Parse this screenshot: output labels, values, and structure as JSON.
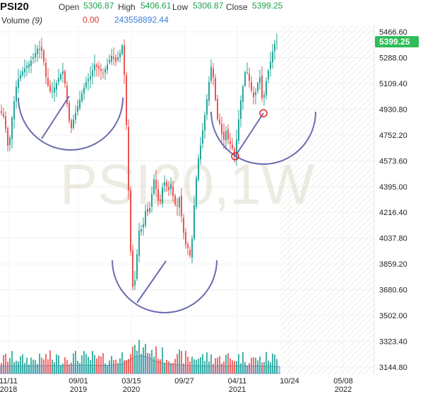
{
  "header": {
    "symbol": "PSI20",
    "open_label": "Open",
    "open_value": "5306.87",
    "high_label": "High",
    "high_value": "5406.61",
    "low_label": "Low",
    "low_value": "5306.87",
    "close_label": "Close",
    "close_value": "5399.25",
    "volume_label": "Volume",
    "volume_period": "(9)",
    "volume_value": "0.00",
    "volume_ma_value": "243558892.44",
    "price_badge": "5399.25"
  },
  "watermark": "PSI20,1W",
  "colors": {
    "up": "#26a69a",
    "down": "#ef5350",
    "badge": "#2ebd59",
    "value_green": "#1aa34a",
    "value_red": "#e03030",
    "value_blue": "#3b7fd6",
    "annotation": "#6b6bb0",
    "marker": "#e02a2a",
    "volume_area": "#aac6ea"
  },
  "chart_data": {
    "type": "candlestick",
    "title": "PSI20",
    "timeframe": "1W",
    "y_ticks": [
      5466.6,
      5288.0,
      5109.4,
      4930.8,
      4752.2,
      4573.6,
      4395.0,
      4216.4,
      4037.8,
      3859.2,
      3680.6,
      3502.0,
      3323.4,
      3144.8
    ],
    "y_tick_labels": [
      "5466.60",
      "5288.00",
      "5109.40",
      "4930.80",
      "4752.20",
      "4573.60",
      "4395.00",
      "4216.40",
      "4037.80",
      "3859.20",
      "3680.60",
      "3502.00",
      "3323.40",
      "3144.80"
    ],
    "ylim": [
      3120,
      5560
    ],
    "x_ticks": [
      {
        "label": "11/11",
        "sub": "2018"
      },
      {
        "label": "09/01",
        "sub": "2019"
      },
      {
        "label": "03/15",
        "sub": "2020"
      },
      {
        "label": "09/27",
        "sub": ""
      },
      {
        "label": "04/11",
        "sub": "2021"
      },
      {
        "label": "10/24",
        "sub": ""
      },
      {
        "label": "05/08",
        "sub": "2022"
      }
    ],
    "price_path": [
      [
        0,
        4920
      ],
      [
        6,
        4870
      ],
      [
        12,
        4640
      ],
      [
        18,
        4920
      ],
      [
        24,
        5120
      ],
      [
        30,
        5180
      ],
      [
        36,
        5220
      ],
      [
        42,
        5250
      ],
      [
        48,
        5300
      ],
      [
        54,
        5360
      ],
      [
        60,
        5330
      ],
      [
        66,
        5120
      ],
      [
        72,
        5040
      ],
      [
        78,
        5090
      ],
      [
        84,
        5160
      ],
      [
        90,
        5200
      ],
      [
        96,
        4920
      ],
      [
        100,
        4780
      ],
      [
        104,
        4860
      ],
      [
        110,
        4950
      ],
      [
        116,
        5040
      ],
      [
        122,
        5120
      ],
      [
        128,
        5160
      ],
      [
        134,
        5240
      ],
      [
        140,
        5210
      ],
      [
        146,
        5180
      ],
      [
        152,
        5240
      ],
      [
        158,
        5300
      ],
      [
        164,
        5260
      ],
      [
        170,
        5320
      ],
      [
        174,
        5390
      ],
      [
        177,
        5060
      ],
      [
        180,
        4700
      ],
      [
        183,
        4200
      ],
      [
        186,
        3820
      ],
      [
        189,
        3640
      ],
      [
        192,
        3800
      ],
      [
        195,
        3990
      ],
      [
        198,
        4140
      ],
      [
        201,
        4080
      ],
      [
        204,
        4160
      ],
      [
        207,
        4260
      ],
      [
        210,
        4200
      ],
      [
        213,
        4270
      ],
      [
        216,
        4380
      ],
      [
        219,
        4480
      ],
      [
        222,
        4330
      ],
      [
        226,
        4260
      ],
      [
        230,
        4390
      ],
      [
        234,
        4440
      ],
      [
        238,
        4360
      ],
      [
        242,
        4410
      ],
      [
        246,
        4300
      ],
      [
        250,
        4240
      ],
      [
        254,
        4320
      ],
      [
        258,
        4150
      ],
      [
        262,
        4000
      ],
      [
        266,
        3970
      ],
      [
        270,
        3900
      ],
      [
        273,
        4100
      ],
      [
        276,
        4350
      ],
      [
        280,
        4560
      ],
      [
        284,
        4680
      ],
      [
        288,
        4820
      ],
      [
        292,
        4960
      ],
      [
        296,
        5120
      ],
      [
        300,
        5260
      ],
      [
        304,
        5040
      ],
      [
        308,
        4860
      ],
      [
        312,
        4820
      ],
      [
        316,
        4700
      ],
      [
        320,
        4780
      ],
      [
        324,
        4700
      ],
      [
        328,
        4680
      ],
      [
        332,
        4600
      ],
      [
        336,
        4760
      ],
      [
        340,
        4960
      ],
      [
        344,
        5090
      ],
      [
        348,
        5220
      ],
      [
        352,
        5150
      ],
      [
        356,
        5060
      ],
      [
        360,
        5000
      ],
      [
        364,
        5100
      ],
      [
        368,
        5150
      ],
      [
        372,
        4960
      ],
      [
        376,
        5100
      ],
      [
        380,
        5200
      ],
      [
        384,
        5280
      ],
      [
        388,
        5380
      ],
      [
        392,
        5399
      ]
    ],
    "volume_ma": [
      [
        0,
        0.42
      ],
      [
        40,
        0.44
      ],
      [
        80,
        0.45
      ],
      [
        120,
        0.47
      ],
      [
        150,
        0.46
      ],
      [
        172,
        0.5
      ],
      [
        182,
        0.7
      ],
      [
        190,
        0.95
      ],
      [
        200,
        1.0
      ],
      [
        208,
        0.95
      ],
      [
        218,
        0.72
      ],
      [
        235,
        0.55
      ],
      [
        260,
        0.46
      ],
      [
        300,
        0.43
      ],
      [
        340,
        0.44
      ],
      [
        370,
        0.42
      ],
      [
        396,
        0.4
      ]
    ],
    "annotations": {
      "arcs": [
        {
          "cx": 100,
          "cy": 138,
          "r": 74
        },
        {
          "cx": 233,
          "cy": 368,
          "r": 74
        },
        {
          "cx": 373,
          "cy": 158,
          "r": 74
        }
      ],
      "markers": [
        [
          373,
          160
        ],
        [
          333,
          221
        ]
      ]
    }
  }
}
